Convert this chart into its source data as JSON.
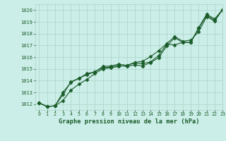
{
  "title": "Graphe pression niveau de la mer (hPa)",
  "bg_color": "#cceee8",
  "grid_color": "#b0d8cc",
  "line_color": "#1a5c2a",
  "xlim": [
    -0.5,
    23
  ],
  "ylim": [
    1011.5,
    1020.5
  ],
  "yticks": [
    1012,
    1013,
    1014,
    1015,
    1016,
    1017,
    1018,
    1019,
    1020
  ],
  "xticks": [
    0,
    1,
    2,
    3,
    4,
    5,
    6,
    7,
    8,
    9,
    10,
    11,
    12,
    13,
    14,
    15,
    16,
    17,
    18,
    19,
    20,
    21,
    22,
    23
  ],
  "series1": [
    1012.1,
    1011.8,
    1011.85,
    1012.8,
    1013.9,
    1014.2,
    1014.6,
    1014.75,
    1015.2,
    1015.25,
    1015.4,
    1015.3,
    1015.5,
    1015.45,
    1015.6,
    1016.15,
    1017.1,
    1017.05,
    1017.25,
    1017.25,
    1018.5,
    1019.65,
    1019.25,
    1020.05
  ],
  "series2": [
    1012.1,
    1011.8,
    1011.85,
    1013.0,
    1013.85,
    1014.2,
    1014.5,
    1014.75,
    1015.1,
    1015.15,
    1015.3,
    1015.2,
    1015.35,
    1015.25,
    1015.55,
    1015.95,
    1016.95,
    1017.65,
    1017.25,
    1017.25,
    1018.45,
    1019.55,
    1019.15,
    1020.05
  ],
  "series3": [
    1012.1,
    1011.8,
    1011.85,
    1012.3,
    1013.2,
    1013.7,
    1014.1,
    1014.6,
    1015.0,
    1015.1,
    1015.2,
    1015.3,
    1015.55,
    1015.65,
    1016.05,
    1016.55,
    1017.15,
    1017.75,
    1017.35,
    1017.45,
    1018.15,
    1019.45,
    1019.05,
    1020.05
  ]
}
